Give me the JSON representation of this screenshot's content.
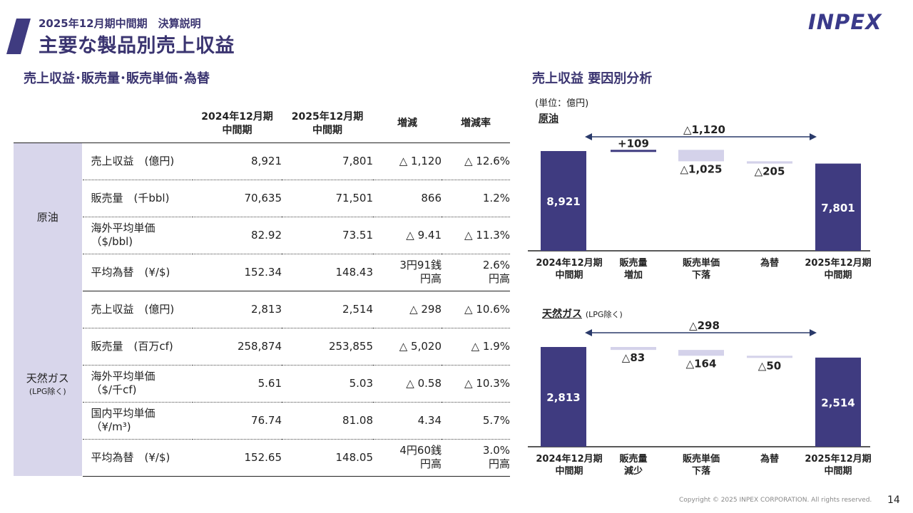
{
  "header": {
    "subtitle": "2025年12月期中間期　決算説明",
    "title": "主要な製品別売上収益",
    "logo": "INPEX"
  },
  "left_section": {
    "title": "売上収益･販売量･販売単価･為替",
    "columns": [
      "2024年12月期\n中間期",
      "2025年12月期\n中間期",
      "増減",
      "増減率"
    ],
    "groups": [
      {
        "category": "原油",
        "category_note": "",
        "rows": [
          {
            "item": "売上収益　(億円)",
            "v2024": "8,921",
            "v2025": "7,801",
            "change": "△ 1,120",
            "rate": "△ 12.6%"
          },
          {
            "item": "販売量　(千bbl)",
            "v2024": "70,635",
            "v2025": "71,501",
            "change": "866",
            "rate": "1.2%"
          },
          {
            "item": "海外平均単価\n（$/bbl)",
            "v2024": "82.92",
            "v2025": "73.51",
            "change": "△ 9.41",
            "rate": "△ 11.3%"
          },
          {
            "item": "平均為替　(¥/$)",
            "v2024": "152.34",
            "v2025": "148.43",
            "change": "3円91銭\n円高",
            "rate": "2.6%\n円高"
          }
        ]
      },
      {
        "category": "天然ガス",
        "category_note": "(LPG除く)",
        "rows": [
          {
            "item": "売上収益　(億円)",
            "v2024": "2,813",
            "v2025": "2,514",
            "change": "△ 298",
            "rate": "△ 10.6%"
          },
          {
            "item": "販売量　(百万cf)",
            "v2024": "258,874",
            "v2025": "253,855",
            "change": "△ 5,020",
            "rate": "△ 1.9%"
          },
          {
            "item": "海外平均単価\n（$/千cf)",
            "v2024": "5.61",
            "v2025": "5.03",
            "change": "△ 0.58",
            "rate": "△ 10.3%"
          },
          {
            "item": "国内平均単価\n（¥/m³)",
            "v2024": "76.74",
            "v2025": "81.08",
            "change": "4.34",
            "rate": "5.7%"
          },
          {
            "item": "平均為替　(¥/$)",
            "v2024": "152.65",
            "v2025": "148.05",
            "change": "4円60銭\n円高",
            "rate": "3.0%\n円高"
          }
        ]
      }
    ]
  },
  "right_section": {
    "title": "売上収益 要因別分析",
    "unit": "(単位：億円)"
  },
  "chart_data": [
    {
      "type": "waterfall",
      "title": "原油",
      "title_note": "",
      "categories": [
        "2024年12月期\n中間期",
        "販売量\n増加",
        "販売単価\n下落",
        "為替",
        "2025年12月期\n中間期"
      ],
      "values": [
        8921,
        109,
        -1025,
        -205,
        7801
      ],
      "kinds": [
        "total",
        "delta",
        "delta",
        "delta",
        "total"
      ],
      "labels": [
        "8,921",
        "+109",
        "△1,025",
        "△205",
        "7,801"
      ],
      "total_change_label": "△1,120",
      "colors": {
        "total": "#3f3b80",
        "up": "#3f3b80",
        "down": "#d4d2ea"
      }
    },
    {
      "type": "waterfall",
      "title": "天然ガス",
      "title_note": "(LPG除く)",
      "categories": [
        "2024年12月期\n中間期",
        "販売量\n減少",
        "販売単価\n下落",
        "為替",
        "2025年12月期\n中間期"
      ],
      "values": [
        2813,
        -83,
        -164,
        -50,
        2514
      ],
      "kinds": [
        "total",
        "delta",
        "delta",
        "delta",
        "total"
      ],
      "labels": [
        "2,813",
        "△83",
        "△164",
        "△50",
        "2,514"
      ],
      "total_change_label": "△298",
      "colors": {
        "total": "#3f3b80",
        "up": "#3f3b80",
        "down": "#d4d2ea"
      }
    }
  ],
  "footer": {
    "copyright": "Copyright © 2025 INPEX CORPORATION. All rights reserved.",
    "page": "14"
  }
}
